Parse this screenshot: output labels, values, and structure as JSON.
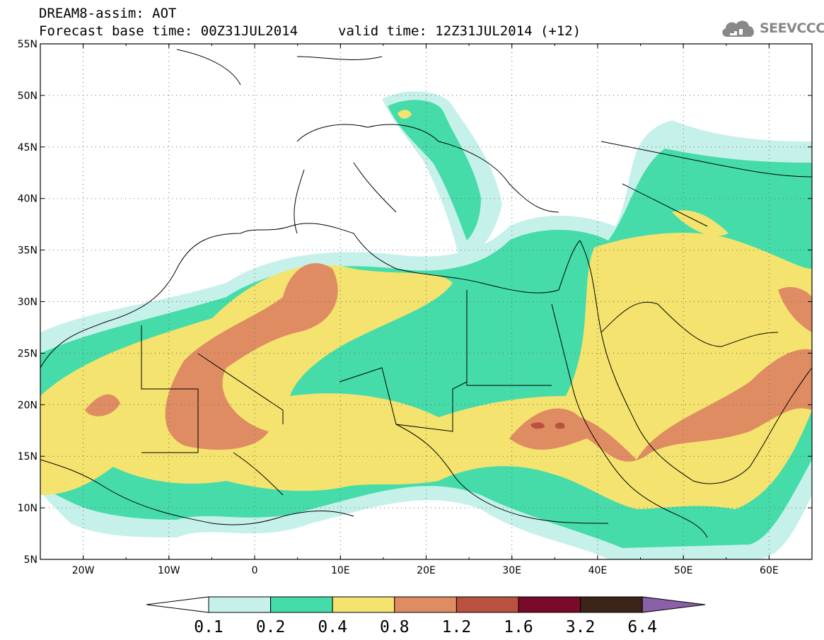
{
  "header": {
    "product_title": "DREAM8-assim: AOT",
    "base_time": "Forecast base time: 00Z31JUL2014",
    "valid_time": "valid time: 12Z31JUL2014 (+12)"
  },
  "logo": {
    "text": "SEEVCCC",
    "icon": "cloud-icon"
  },
  "map": {
    "projection": "lat-lon",
    "lon_range": [
      -25,
      65
    ],
    "lat_range": [
      5,
      55
    ],
    "lat_labels": [
      "55N",
      "50N",
      "45N",
      "40N",
      "35N",
      "30N",
      "25N",
      "20N",
      "15N",
      "10N",
      "5N"
    ],
    "lon_labels": [
      "20W",
      "10W",
      "0",
      "10E",
      "20E",
      "30E",
      "40E",
      "50E",
      "60E"
    ],
    "grid": "dotted"
  },
  "colorbar": {
    "labels": [
      "0.1",
      "0.2",
      "0.4",
      "0.8",
      "1.2",
      "1.6",
      "3.2",
      "6.4"
    ],
    "colors": [
      "#ffffff",
      "#c6f1ea",
      "#45dcaa",
      "#f4e36e",
      "#e08c63",
      "#b9513e",
      "#7a0a2a",
      "#3b2418",
      "#8a60a8"
    ]
  }
}
